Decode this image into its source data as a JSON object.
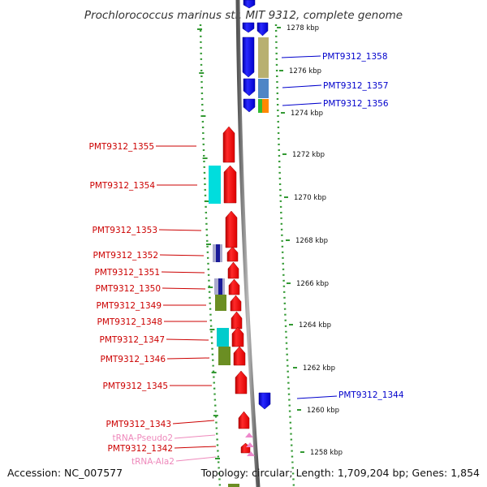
{
  "title": "Prochlorococcus marinus str. MIT 9312, complete genome",
  "footer": {
    "accession": "Accession: NC_007577",
    "summary": "Topology: circular; Length: 1,709,204 bp; Genes: 1,854"
  },
  "colors": {
    "forward_label": "#cc0000",
    "reverse_label": "#0000cc",
    "rna_label": "#ee88bb",
    "forward_gene": "#ff0000",
    "reverse_gene": "#0000ff",
    "ruler": "#339933"
  },
  "ticks": [
    "1278 kbp",
    "1276 kbp",
    "1274 kbp",
    "1272 kbp",
    "1270 kbp",
    "1268 kbp",
    "1266 kbp",
    "1264 kbp",
    "1262 kbp",
    "1260 kbp",
    "1258 kbp"
  ],
  "labels_reverse": [
    "PMT9312_1358",
    "PMT9312_1357",
    "PMT9312_1356",
    "PMT9312_1344"
  ],
  "labels_forward": [
    "PMT9312_1355",
    "PMT9312_1354",
    "PMT9312_1353",
    "PMT9312_1352",
    "PMT9312_1351",
    "PMT9312_1350",
    "PMT9312_1349",
    "PMT9312_1348",
    "PMT9312_1347",
    "PMT9312_1346",
    "PMT9312_1345",
    "PMT9312_1343",
    "PMT9312_1342"
  ],
  "labels_rna": [
    "tRNA-Pseudo2",
    "tRNA-Ala2"
  ]
}
